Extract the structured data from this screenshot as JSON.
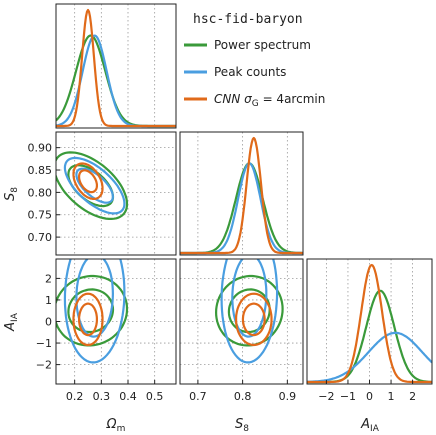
{
  "chart_data": {
    "type": "corner",
    "parameters": [
      {
        "label_base": "Ω",
        "label_sub": "m",
        "range": [
          0.13,
          0.58
        ],
        "ticks": [
          "0.2",
          "0.3",
          "0.4",
          "0.5"
        ],
        "tick_values": [
          0.2,
          0.3,
          0.4,
          0.5
        ]
      },
      {
        "label_base": "S",
        "label_sub": "8",
        "range": [
          0.66,
          0.935
        ],
        "ticks": [
          "0.7",
          "0.8",
          "0.9"
        ],
        "tick_values": [
          0.7,
          0.8,
          0.9
        ],
        "y_ticks": [
          "0.70",
          "0.75",
          "0.80",
          "0.85",
          "0.90"
        ],
        "y_tick_values": [
          0.7,
          0.75,
          0.8,
          0.85,
          0.9
        ]
      },
      {
        "label_base": "A",
        "label_sub": "IA",
        "range": [
          -2.9,
          2.9
        ],
        "ticks": [
          "−2",
          "−1",
          "0",
          "1",
          "2"
        ],
        "tick_values": [
          -2,
          -1,
          0,
          1,
          2
        ],
        "y_ticks": [
          "−2",
          "−1",
          "0",
          "1",
          "2"
        ],
        "y_tick_values": [
          -2,
          -1,
          0,
          1,
          2
        ]
      }
    ],
    "legend": {
      "title": "hsc-fid-baryon",
      "placement": "top-right",
      "entries": [
        {
          "text": "Power spectrum",
          "color": "#3a9a3a"
        },
        {
          "text": "Peak counts",
          "color": "#4a9ee0"
        },
        {
          "text_prefix": "CNN σ",
          "text_sub": "G",
          "text_suffix": " = 4arcmin",
          "color": "#e06a1a"
        }
      ]
    },
    "series": [
      {
        "name": "Power spectrum",
        "color": "#3a9a3a",
        "mean": [
          0.26,
          0.815,
          0.5
        ],
        "sigma": [
          0.055,
          0.03,
          0.65
        ],
        "corr": [
          [
            1,
            -0.55,
            0.05
          ],
          [
            -0.55,
            1,
            0.05
          ],
          [
            0.05,
            0.05,
            1
          ]
        ]
      },
      {
        "name": "Peak counts",
        "color": "#4a9ee0",
        "mean": [
          0.275,
          0.815,
          1.2
        ],
        "sigma": [
          0.045,
          0.025,
          1.25
        ],
        "corr": [
          [
            1,
            -0.65,
            0.05
          ],
          [
            -0.65,
            1,
            0.05
          ],
          [
            0.05,
            0.05,
            1
          ]
        ]
      },
      {
        "name": "CNN",
        "color": "#e06a1a",
        "mean": [
          0.25,
          0.825,
          0.1
        ],
        "sigma": [
          0.022,
          0.016,
          0.48
        ],
        "corr": [
          [
            1,
            -0.4,
            0.0
          ],
          [
            -0.4,
            1,
            0.0
          ],
          [
            0.0,
            0.0,
            1
          ]
        ]
      }
    ],
    "grid": true
  }
}
